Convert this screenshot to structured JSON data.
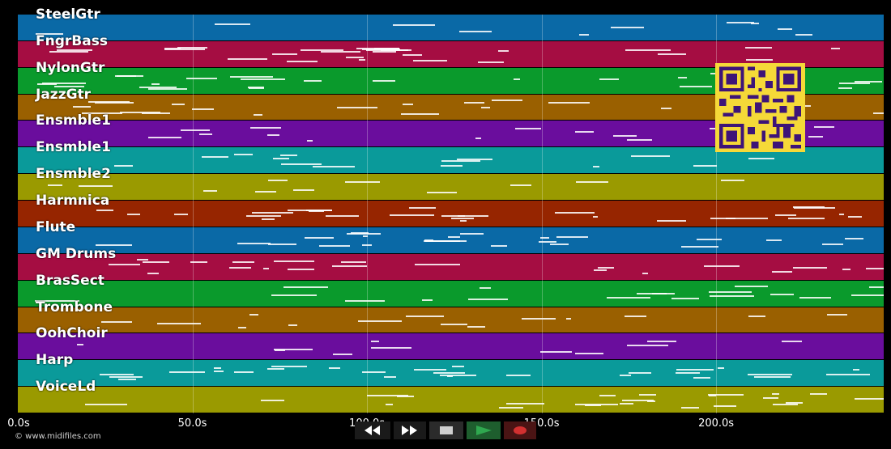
{
  "tracks": [
    {
      "name": "SteelGtr",
      "color": "#0a69a6"
    },
    {
      "name": "FngrBass",
      "color": "#a50d42"
    },
    {
      "name": "NylonGtr",
      "color": "#0a9a2c"
    },
    {
      "name": "JazzGtr",
      "color": "#9a6000"
    },
    {
      "name": "Ensmble1",
      "color": "#6a0d9d"
    },
    {
      "name": "Ensmble1",
      "color": "#0a9a9a"
    },
    {
      "name": "Ensmble2",
      "color": "#9a9a00"
    },
    {
      "name": "Harmnica",
      "color": "#962500"
    },
    {
      "name": "Flute",
      "color": "#0a69a6"
    },
    {
      "name": "GM Drums",
      "color": "#a50d42"
    },
    {
      "name": "BrasSect",
      "color": "#0a9a2c"
    },
    {
      "name": "Trombone",
      "color": "#9a6000"
    },
    {
      "name": "OohChoir",
      "color": "#6a0d9d"
    },
    {
      "name": "Harp",
      "color": "#0a9a9a"
    },
    {
      "name": "VoiceLd",
      "color": "#9a9a00"
    }
  ],
  "time_axis": {
    "ticks": [
      "0.0s",
      "50.0s",
      "100.0s",
      "150.0s",
      "200.0s"
    ],
    "tick_values": [
      0,
      50,
      100,
      150,
      200
    ],
    "max_seconds": 248
  },
  "footer": {
    "copyright": "© www.midifiles.com"
  },
  "transport": {
    "rewind_icon": "rewind-icon",
    "fast_forward_icon": "fast-forward-icon",
    "stop_icon": "stop-icon",
    "play_icon": "play-icon",
    "record_icon": "record-icon",
    "play_color": "#2fa84f",
    "record_color": "#d23030"
  },
  "overlay": {
    "qr_code_color": "#f5d938"
  }
}
